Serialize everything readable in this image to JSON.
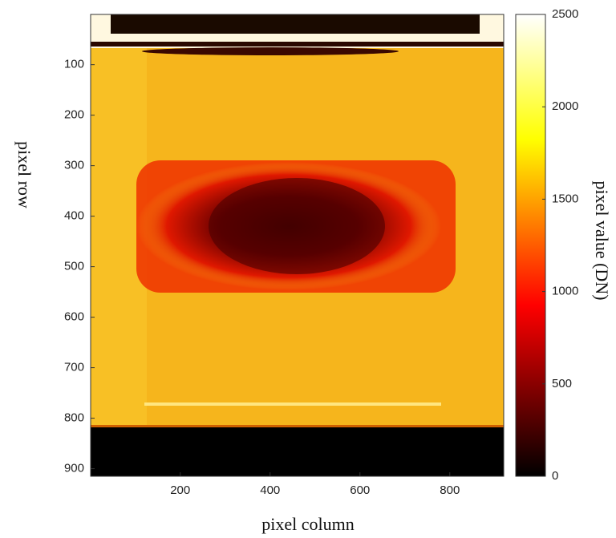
{
  "chart_data": {
    "type": "heatmap",
    "xlabel": "pixel column",
    "ylabel": "pixel row",
    "colorbar_label": "pixel value (DN)",
    "xlim": [
      0.5,
      920
    ],
    "ylim": [
      0.5,
      915
    ],
    "xticks": [
      200,
      400,
      600,
      800
    ],
    "yticks": [
      100,
      200,
      300,
      400,
      500,
      600,
      700,
      800,
      900
    ],
    "clim": [
      0,
      2500
    ],
    "cticks": [
      0,
      500,
      1000,
      1500,
      2000,
      2500
    ]
  }
}
